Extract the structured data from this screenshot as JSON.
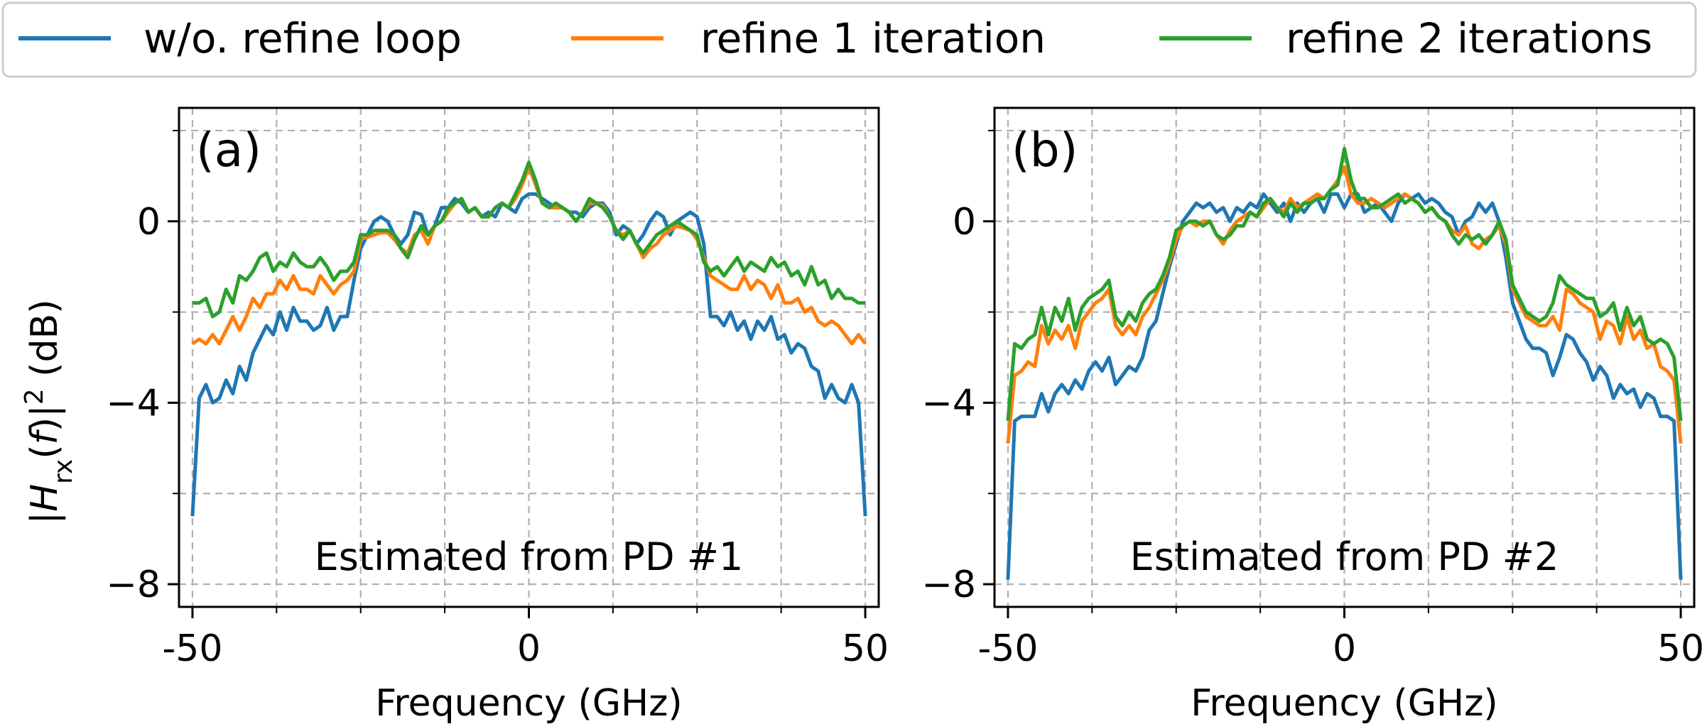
{
  "legend": {
    "items": [
      {
        "label": "w/o. refine loop",
        "color": "#1f77b4"
      },
      {
        "label": "refine 1 iteration",
        "color": "#ff7f0e"
      },
      {
        "label": "refine 2 iterations",
        "color": "#2ca02c"
      }
    ]
  },
  "ylabel": {
    "prefix": "|",
    "main": "H",
    "sub": "rx",
    "arg": "(",
    "arg_italic": "f",
    "arg_close": ")",
    "suffix": "|",
    "sup": "2",
    "units": " (dB)"
  },
  "chart_data": [
    {
      "type": "line",
      "panel_label": "(a)",
      "annotation": "Estimated from PD #1",
      "xlabel": "Frequency (GHz)",
      "xlim": [
        -52,
        52
      ],
      "ylim": [
        -8.5,
        2.5
      ],
      "xticks": [
        {
          "value": -50,
          "label": "-50"
        },
        {
          "value": 0,
          "label": "0"
        },
        {
          "value": 50,
          "label": "50"
        }
      ],
      "yticks": [
        {
          "value": 0,
          "label": "0"
        },
        {
          "value": -4,
          "label": "−4"
        },
        {
          "value": -8,
          "label": "−8"
        }
      ],
      "x": [
        -50,
        -49,
        -48,
        -47,
        -46,
        -45,
        -44,
        -43,
        -42,
        -41,
        -40,
        -39,
        -38,
        -37,
        -36,
        -35,
        -34,
        -33,
        -32,
        -31,
        -30,
        -29,
        -28,
        -27,
        -26,
        -25,
        -24,
        -23,
        -22,
        -21,
        -20,
        -19,
        -18,
        -17,
        -16,
        -15,
        -14,
        -13,
        -12,
        -11,
        -10,
        -9,
        -8,
        -7,
        -6,
        -5,
        -4,
        -3,
        -2,
        -1,
        0,
        1,
        2,
        3,
        4,
        5,
        6,
        7,
        8,
        9,
        10,
        11,
        12,
        13,
        14,
        15,
        16,
        17,
        18,
        19,
        20,
        21,
        22,
        23,
        24,
        25,
        26,
        27,
        28,
        29,
        30,
        31,
        32,
        33,
        34,
        35,
        36,
        37,
        38,
        39,
        40,
        41,
        42,
        43,
        44,
        45,
        46,
        47,
        48,
        49,
        50
      ],
      "series": [
        {
          "name": "w/o. refine loop",
          "color": "#1f77b4",
          "values": [
            -6.5,
            -3.9,
            -3.6,
            -4.0,
            -3.9,
            -3.5,
            -3.8,
            -3.2,
            -3.5,
            -2.9,
            -2.6,
            -2.3,
            -2.5,
            -2.0,
            -2.4,
            -1.9,
            -2.2,
            -2.2,
            -2.4,
            -2.3,
            -1.9,
            -2.4,
            -2.1,
            -2.1,
            -1.3,
            -0.6,
            -0.3,
            0.0,
            0.1,
            0.0,
            -0.3,
            -0.5,
            -0.3,
            0.2,
            0.15,
            -0.3,
            -0.1,
            0.3,
            0.3,
            0.5,
            0.4,
            0.2,
            0.3,
            0.1,
            0.2,
            0.1,
            0.4,
            0.3,
            0.2,
            0.5,
            0.6,
            0.6,
            0.5,
            0.4,
            0.3,
            0.3,
            0.2,
            0.2,
            0.1,
            0.3,
            0.4,
            0.4,
            0.2,
            -0.3,
            -0.1,
            -0.2,
            -0.5,
            -0.3,
            0.0,
            0.2,
            0.1,
            -0.3,
            0.0,
            0.1,
            0.2,
            0.1,
            -0.5,
            -2.1,
            -2.1,
            -2.3,
            -2.0,
            -2.4,
            -2.2,
            -2.6,
            -2.2,
            -2.4,
            -2.1,
            -2.6,
            -2.5,
            -2.9,
            -2.7,
            -2.8,
            -3.2,
            -3.3,
            -3.9,
            -3.6,
            -3.9,
            -4.0,
            -3.6,
            -4.0,
            -6.5
          ]
        },
        {
          "name": "refine 1 iteration",
          "color": "#ff7f0e",
          "values": [
            -2.7,
            -2.6,
            -2.7,
            -2.5,
            -2.7,
            -2.4,
            -2.1,
            -2.4,
            -2.1,
            -1.7,
            -1.9,
            -1.6,
            -1.6,
            -1.3,
            -1.5,
            -1.2,
            -1.5,
            -1.5,
            -1.6,
            -1.2,
            -1.4,
            -1.6,
            -1.4,
            -1.3,
            -1.1,
            -0.4,
            -0.35,
            -0.3,
            -0.25,
            -0.25,
            -0.4,
            -0.6,
            -0.7,
            -0.3,
            -0.2,
            -0.5,
            -0.1,
            0.0,
            0.2,
            0.4,
            0.5,
            0.2,
            0.3,
            0.1,
            0.1,
            0.3,
            0.4,
            0.3,
            0.5,
            0.8,
            1.2,
            0.8,
            0.4,
            0.3,
            0.3,
            0.3,
            0.2,
            0.0,
            0.2,
            0.4,
            0.4,
            0.35,
            0.1,
            -0.2,
            -0.3,
            -0.2,
            -0.5,
            -0.8,
            -0.6,
            -0.5,
            -0.3,
            -0.2,
            -0.1,
            -0.15,
            -0.2,
            -0.4,
            -0.8,
            -1.2,
            -1.3,
            -1.4,
            -1.5,
            -1.5,
            -1.2,
            -1.5,
            -1.3,
            -1.4,
            -1.7,
            -1.4,
            -1.8,
            -1.8,
            -1.7,
            -2.0,
            -1.9,
            -2.2,
            -2.3,
            -2.2,
            -2.3,
            -2.5,
            -2.7,
            -2.5,
            -2.7
          ]
        },
        {
          "name": "refine 2 iterations",
          "color": "#2ca02c",
          "values": [
            -1.8,
            -1.8,
            -1.7,
            -2.1,
            -2.0,
            -1.5,
            -1.8,
            -1.2,
            -1.3,
            -1.1,
            -0.8,
            -0.7,
            -1.1,
            -0.9,
            -1.0,
            -0.7,
            -0.9,
            -1.0,
            -1.0,
            -0.8,
            -1.0,
            -1.3,
            -1.1,
            -1.1,
            -0.9,
            -0.3,
            -0.3,
            -0.2,
            -0.2,
            -0.2,
            -0.3,
            -0.6,
            -0.8,
            -0.4,
            -0.1,
            -0.3,
            -0.1,
            0.0,
            0.3,
            0.4,
            0.5,
            0.2,
            0.3,
            0.1,
            0.1,
            0.3,
            0.4,
            0.3,
            0.6,
            0.9,
            1.3,
            0.9,
            0.4,
            0.3,
            0.4,
            0.3,
            0.2,
            0.0,
            0.2,
            0.5,
            0.4,
            0.3,
            0.1,
            -0.2,
            -0.4,
            -0.2,
            -0.5,
            -0.7,
            -0.5,
            -0.3,
            -0.2,
            -0.1,
            0.0,
            -0.1,
            -0.2,
            -0.3,
            -0.9,
            -1.1,
            -1.0,
            -1.2,
            -1.0,
            -0.8,
            -1.1,
            -0.9,
            -1.0,
            -1.1,
            -0.8,
            -1.0,
            -0.9,
            -1.2,
            -1.1,
            -1.4,
            -1.0,
            -1.4,
            -1.3,
            -1.7,
            -1.5,
            -1.7,
            -1.7,
            -1.8,
            -1.8
          ]
        }
      ]
    },
    {
      "type": "line",
      "panel_label": "(b)",
      "annotation": "Estimated from PD #2",
      "xlabel": "Frequency (GHz)",
      "xlim": [
        -52,
        52
      ],
      "ylim": [
        -8.5,
        2.5
      ],
      "xticks": [
        {
          "value": -50,
          "label": "-50"
        },
        {
          "value": 0,
          "label": "0"
        },
        {
          "value": 50,
          "label": "50"
        }
      ],
      "yticks": [
        {
          "value": 0,
          "label": "0"
        },
        {
          "value": -4,
          "label": "−4"
        },
        {
          "value": -8,
          "label": "−8"
        }
      ],
      "x": [
        -50,
        -49,
        -48,
        -47,
        -46,
        -45,
        -44,
        -43,
        -42,
        -41,
        -40,
        -39,
        -38,
        -37,
        -36,
        -35,
        -34,
        -33,
        -32,
        -31,
        -30,
        -29,
        -28,
        -27,
        -26,
        -25,
        -24,
        -23,
        -22,
        -21,
        -20,
        -19,
        -18,
        -17,
        -16,
        -15,
        -14,
        -13,
        -12,
        -11,
        -10,
        -9,
        -8,
        -7,
        -6,
        -5,
        -4,
        -3,
        -2,
        -1,
        0,
        1,
        2,
        3,
        4,
        5,
        6,
        7,
        8,
        9,
        10,
        11,
        12,
        13,
        14,
        15,
        16,
        17,
        18,
        19,
        20,
        21,
        22,
        23,
        24,
        25,
        26,
        27,
        28,
        29,
        30,
        31,
        32,
        33,
        34,
        35,
        36,
        37,
        38,
        39,
        40,
        41,
        42,
        43,
        44,
        45,
        46,
        47,
        48,
        49,
        50
      ],
      "series": [
        {
          "name": "w/o. refine loop",
          "color": "#1f77b4",
          "values": [
            -7.9,
            -4.4,
            -4.3,
            -4.3,
            -4.3,
            -3.8,
            -4.2,
            -3.8,
            -3.6,
            -3.8,
            -3.5,
            -3.7,
            -3.3,
            -3.1,
            -3.3,
            -3.0,
            -3.6,
            -3.4,
            -3.2,
            -3.3,
            -3.0,
            -2.4,
            -2.2,
            -1.6,
            -1.0,
            -0.5,
            0.0,
            0.2,
            0.4,
            0.3,
            0.4,
            0.2,
            0.3,
            0.0,
            0.3,
            0.2,
            0.4,
            0.3,
            0.6,
            0.4,
            0.2,
            0.4,
            0.0,
            0.4,
            0.2,
            0.4,
            0.5,
            0.2,
            0.6,
            0.6,
            0.3,
            0.6,
            0.6,
            0.2,
            0.3,
            0.4,
            0.2,
            0.0,
            0.4,
            0.6,
            0.5,
            0.6,
            0.4,
            0.5,
            0.4,
            0.2,
            0.1,
            -0.3,
            0.0,
            0.1,
            0.4,
            0.2,
            0.4,
            0.0,
            -0.8,
            -1.8,
            -2.2,
            -2.6,
            -2.8,
            -2.8,
            -2.9,
            -3.4,
            -3.0,
            -2.5,
            -2.6,
            -2.9,
            -3.1,
            -3.5,
            -3.2,
            -3.4,
            -3.9,
            -3.6,
            -3.8,
            -3.7,
            -4.1,
            -3.8,
            -3.9,
            -4.3,
            -4.3,
            -4.4,
            -7.9
          ]
        },
        {
          "name": "refine 1 iteration",
          "color": "#ff7f0e",
          "values": [
            -4.9,
            -3.4,
            -3.3,
            -3.1,
            -3.2,
            -2.3,
            -2.7,
            -2.4,
            -2.6,
            -2.3,
            -2.8,
            -2.2,
            -2.0,
            -1.8,
            -1.7,
            -1.5,
            -2.3,
            -2.5,
            -2.3,
            -2.5,
            -2.1,
            -1.9,
            -1.6,
            -1.3,
            -0.9,
            -0.4,
            -0.1,
            0.0,
            -0.1,
            0.0,
            0.0,
            -0.3,
            -0.5,
            -0.2,
            0.0,
            0.1,
            0.2,
            0.1,
            0.3,
            0.5,
            0.3,
            0.2,
            0.5,
            0.3,
            0.4,
            0.5,
            0.6,
            0.5,
            0.7,
            0.9,
            1.2,
            0.6,
            0.4,
            0.4,
            0.5,
            0.4,
            0.3,
            0.4,
            0.5,
            0.6,
            0.5,
            0.4,
            0.2,
            0.3,
            0.1,
            0.0,
            -0.2,
            -0.3,
            -0.1,
            -0.5,
            -0.6,
            -0.4,
            -0.3,
            -0.1,
            -0.5,
            -1.5,
            -1.8,
            -2.1,
            -2.2,
            -2.3,
            -2.3,
            -2.1,
            -2.4,
            -1.5,
            -1.6,
            -1.8,
            -1.9,
            -2.0,
            -2.6,
            -2.2,
            -2.3,
            -2.7,
            -2.1,
            -2.6,
            -2.4,
            -2.8,
            -2.7,
            -3.2,
            -3.3,
            -3.5,
            -4.9
          ]
        },
        {
          "name": "refine 2 iterations",
          "color": "#2ca02c",
          "values": [
            -4.4,
            -2.7,
            -2.8,
            -2.6,
            -2.5,
            -1.9,
            -2.5,
            -1.9,
            -2.2,
            -1.7,
            -2.4,
            -1.9,
            -1.7,
            -1.6,
            -1.5,
            -1.3,
            -2.1,
            -2.3,
            -2.0,
            -2.2,
            -1.8,
            -1.6,
            -1.5,
            -1.2,
            -0.8,
            -0.2,
            -0.1,
            0.0,
            0.0,
            -0.1,
            0.0,
            -0.3,
            -0.4,
            -0.3,
            -0.1,
            -0.1,
            0.2,
            0.1,
            0.4,
            0.5,
            0.3,
            0.1,
            0.4,
            0.2,
            0.4,
            0.4,
            0.5,
            0.5,
            0.7,
            0.8,
            1.6,
            0.9,
            0.5,
            0.5,
            0.3,
            0.3,
            0.4,
            0.5,
            0.6,
            0.4,
            0.5,
            0.4,
            0.2,
            0.3,
            0.1,
            0.0,
            -0.3,
            -0.5,
            -0.3,
            -0.4,
            -0.3,
            -0.5,
            -0.3,
            0.0,
            -0.4,
            -1.4,
            -1.7,
            -2.0,
            -2.1,
            -2.2,
            -2.1,
            -1.8,
            -1.2,
            -1.4,
            -1.5,
            -1.6,
            -1.7,
            -1.7,
            -2.1,
            -2.0,
            -1.8,
            -2.4,
            -1.9,
            -2.3,
            -2.1,
            -2.6,
            -2.7,
            -2.6,
            -2.7,
            -3.0,
            -4.4
          ]
        }
      ]
    }
  ]
}
